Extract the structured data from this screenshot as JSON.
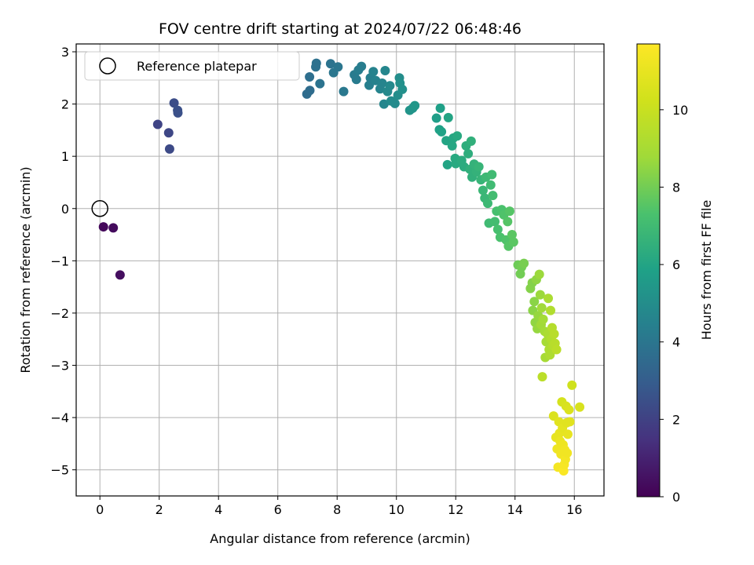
{
  "chart_data": {
    "type": "scatter",
    "title": "FOV centre drift starting at 2024/07/22 06:48:46",
    "xlabel": "Angular distance from reference (arcmin)",
    "ylabel": "Rotation from reference (arcmin)",
    "xlim": [
      -0.8,
      17.0
    ],
    "ylim": [
      -5.5,
      3.15
    ],
    "xticks": [
      0,
      2,
      4,
      6,
      8,
      10,
      12,
      14,
      16
    ],
    "yticks": [
      -5,
      -4,
      -3,
      -2,
      -1,
      0,
      1,
      2,
      3
    ],
    "grid": true,
    "legend": {
      "location": "upper left",
      "entries": [
        "Reference platepar"
      ]
    },
    "reference_point": {
      "x": 0,
      "y": 0
    },
    "colorbar": {
      "label": "Hours from first FF file",
      "colormap": "viridis",
      "range": [
        0,
        11.7
      ],
      "ticks": [
        0,
        2,
        4,
        6,
        8,
        10
      ]
    },
    "points": [
      {
        "x": 0.12,
        "y": -0.35,
        "t": 0.2
      },
      {
        "x": 0.45,
        "y": -0.37,
        "t": 0.3
      },
      {
        "x": 0.68,
        "y": -1.27,
        "t": 0.4
      },
      {
        "x": 1.95,
        "y": 1.61,
        "t": 2.1
      },
      {
        "x": 2.32,
        "y": 1.45,
        "t": 2.2
      },
      {
        "x": 2.35,
        "y": 1.14,
        "t": 2.3
      },
      {
        "x": 2.5,
        "y": 2.02,
        "t": 2.4
      },
      {
        "x": 2.62,
        "y": 1.88,
        "t": 2.5
      },
      {
        "x": 2.63,
        "y": 1.83,
        "t": 2.5
      },
      {
        "x": 6.98,
        "y": 2.19,
        "t": 3.6
      },
      {
        "x": 7.08,
        "y": 2.26,
        "t": 3.6
      },
      {
        "x": 7.07,
        "y": 2.52,
        "t": 3.7
      },
      {
        "x": 7.28,
        "y": 2.71,
        "t": 3.8
      },
      {
        "x": 7.3,
        "y": 2.78,
        "t": 3.8
      },
      {
        "x": 7.42,
        "y": 2.39,
        "t": 3.9
      },
      {
        "x": 7.78,
        "y": 2.77,
        "t": 3.9
      },
      {
        "x": 7.88,
        "y": 2.6,
        "t": 4.0
      },
      {
        "x": 8.03,
        "y": 2.71,
        "t": 4.0
      },
      {
        "x": 8.22,
        "y": 2.24,
        "t": 4.1
      },
      {
        "x": 8.58,
        "y": 2.56,
        "t": 4.2
      },
      {
        "x": 8.65,
        "y": 2.47,
        "t": 4.2
      },
      {
        "x": 8.72,
        "y": 2.65,
        "t": 4.3
      },
      {
        "x": 8.82,
        "y": 2.72,
        "t": 4.3
      },
      {
        "x": 9.08,
        "y": 2.36,
        "t": 4.4
      },
      {
        "x": 9.12,
        "y": 2.5,
        "t": 4.4
      },
      {
        "x": 9.22,
        "y": 2.62,
        "t": 4.5
      },
      {
        "x": 9.3,
        "y": 2.45,
        "t": 4.5
      },
      {
        "x": 9.45,
        "y": 2.29,
        "t": 4.6
      },
      {
        "x": 9.52,
        "y": 2.4,
        "t": 4.6
      },
      {
        "x": 9.58,
        "y": 2.0,
        "t": 4.7
      },
      {
        "x": 9.62,
        "y": 2.64,
        "t": 4.7
      },
      {
        "x": 9.7,
        "y": 2.24,
        "t": 4.8
      },
      {
        "x": 9.78,
        "y": 2.35,
        "t": 4.8
      },
      {
        "x": 9.82,
        "y": 2.06,
        "t": 4.9
      },
      {
        "x": 9.95,
        "y": 2.01,
        "t": 4.9
      },
      {
        "x": 10.05,
        "y": 2.17,
        "t": 5.0
      },
      {
        "x": 10.1,
        "y": 2.5,
        "t": 5.0
      },
      {
        "x": 10.12,
        "y": 2.4,
        "t": 5.1
      },
      {
        "x": 10.2,
        "y": 2.28,
        "t": 5.1
      },
      {
        "x": 10.45,
        "y": 1.88,
        "t": 5.3
      },
      {
        "x": 10.55,
        "y": 1.92,
        "t": 5.3
      },
      {
        "x": 10.62,
        "y": 1.97,
        "t": 5.4
      },
      {
        "x": 11.35,
        "y": 1.73,
        "t": 5.7
      },
      {
        "x": 11.45,
        "y": 1.51,
        "t": 5.8
      },
      {
        "x": 11.48,
        "y": 1.92,
        "t": 5.8
      },
      {
        "x": 11.52,
        "y": 1.47,
        "t": 5.9
      },
      {
        "x": 11.68,
        "y": 1.3,
        "t": 6.0
      },
      {
        "x": 11.72,
        "y": 0.84,
        "t": 6.0
      },
      {
        "x": 11.75,
        "y": 1.74,
        "t": 6.0
      },
      {
        "x": 11.88,
        "y": 1.2,
        "t": 6.1
      },
      {
        "x": 11.92,
        "y": 1.35,
        "t": 6.1
      },
      {
        "x": 11.98,
        "y": 0.96,
        "t": 6.2
      },
      {
        "x": 12.0,
        "y": 0.86,
        "t": 6.2
      },
      {
        "x": 12.05,
        "y": 1.39,
        "t": 6.2
      },
      {
        "x": 12.2,
        "y": 0.92,
        "t": 6.3
      },
      {
        "x": 12.28,
        "y": 0.8,
        "t": 6.3
      },
      {
        "x": 12.35,
        "y": 1.2,
        "t": 6.4
      },
      {
        "x": 12.42,
        "y": 1.05,
        "t": 6.4
      },
      {
        "x": 12.48,
        "y": 0.75,
        "t": 6.5
      },
      {
        "x": 12.52,
        "y": 1.29,
        "t": 6.5
      },
      {
        "x": 12.55,
        "y": 0.6,
        "t": 6.5
      },
      {
        "x": 12.62,
        "y": 0.85,
        "t": 6.6
      },
      {
        "x": 12.7,
        "y": 0.7,
        "t": 6.6
      },
      {
        "x": 12.78,
        "y": 0.8,
        "t": 6.7
      },
      {
        "x": 12.85,
        "y": 0.55,
        "t": 6.7
      },
      {
        "x": 12.92,
        "y": 0.35,
        "t": 6.8
      },
      {
        "x": 12.98,
        "y": 0.2,
        "t": 6.8
      },
      {
        "x": 13.02,
        "y": 0.6,
        "t": 6.9
      },
      {
        "x": 13.08,
        "y": 0.1,
        "t": 6.9
      },
      {
        "x": 13.12,
        "y": -0.28,
        "t": 7.0
      },
      {
        "x": 13.18,
        "y": 0.45,
        "t": 7.0
      },
      {
        "x": 13.22,
        "y": 0.65,
        "t": 7.0
      },
      {
        "x": 13.25,
        "y": 0.25,
        "t": 7.1
      },
      {
        "x": 13.32,
        "y": -0.25,
        "t": 7.1
      },
      {
        "x": 13.38,
        "y": -0.05,
        "t": 7.2
      },
      {
        "x": 13.42,
        "y": -0.4,
        "t": 7.2
      },
      {
        "x": 13.5,
        "y": -0.55,
        "t": 7.3
      },
      {
        "x": 13.55,
        "y": -0.02,
        "t": 7.3
      },
      {
        "x": 13.62,
        "y": -0.12,
        "t": 7.4
      },
      {
        "x": 13.7,
        "y": -0.6,
        "t": 7.4
      },
      {
        "x": 13.75,
        "y": -0.25,
        "t": 7.5
      },
      {
        "x": 13.78,
        "y": -0.72,
        "t": 7.5
      },
      {
        "x": 13.82,
        "y": -0.05,
        "t": 7.5
      },
      {
        "x": 13.9,
        "y": -0.5,
        "t": 7.6
      },
      {
        "x": 13.95,
        "y": -0.64,
        "t": 7.6
      },
      {
        "x": 14.1,
        "y": -1.08,
        "t": 7.9
      },
      {
        "x": 14.18,
        "y": -1.25,
        "t": 8.0
      },
      {
        "x": 14.22,
        "y": -1.12,
        "t": 8.0
      },
      {
        "x": 14.3,
        "y": -1.05,
        "t": 8.1
      },
      {
        "x": 14.52,
        "y": -1.53,
        "t": 8.3
      },
      {
        "x": 14.58,
        "y": -1.42,
        "t": 8.3
      },
      {
        "x": 14.6,
        "y": -1.95,
        "t": 8.4
      },
      {
        "x": 14.65,
        "y": -1.78,
        "t": 8.4
      },
      {
        "x": 14.68,
        "y": -2.18,
        "t": 8.5
      },
      {
        "x": 14.72,
        "y": -1.36,
        "t": 8.5
      },
      {
        "x": 14.75,
        "y": -2.3,
        "t": 8.6
      },
      {
        "x": 14.78,
        "y": -2.05,
        "t": 8.6
      },
      {
        "x": 14.82,
        "y": -1.26,
        "t": 8.7
      },
      {
        "x": 14.85,
        "y": -1.65,
        "t": 8.7
      },
      {
        "x": 14.88,
        "y": -2.22,
        "t": 8.8
      },
      {
        "x": 14.9,
        "y": -1.9,
        "t": 8.8
      },
      {
        "x": 14.92,
        "y": -3.22,
        "t": 9.6
      },
      {
        "x": 14.95,
        "y": -2.12,
        "t": 8.9
      },
      {
        "x": 15.0,
        "y": -2.35,
        "t": 8.9
      },
      {
        "x": 15.02,
        "y": -2.85,
        "t": 9.0
      },
      {
        "x": 15.05,
        "y": -2.55,
        "t": 9.0
      },
      {
        "x": 15.1,
        "y": -2.4,
        "t": 9.1
      },
      {
        "x": 15.12,
        "y": -1.72,
        "t": 9.1
      },
      {
        "x": 15.15,
        "y": -2.7,
        "t": 9.2
      },
      {
        "x": 15.18,
        "y": -2.8,
        "t": 9.2
      },
      {
        "x": 15.2,
        "y": -1.95,
        "t": 9.3
      },
      {
        "x": 15.22,
        "y": -2.5,
        "t": 9.3
      },
      {
        "x": 15.25,
        "y": -2.28,
        "t": 9.4
      },
      {
        "x": 15.28,
        "y": -2.62,
        "t": 9.4
      },
      {
        "x": 15.3,
        "y": -3.97,
        "t": 10.6
      },
      {
        "x": 15.32,
        "y": -2.4,
        "t": 9.5
      },
      {
        "x": 15.35,
        "y": -2.58,
        "t": 9.5
      },
      {
        "x": 15.38,
        "y": -4.38,
        "t": 11.0
      },
      {
        "x": 15.4,
        "y": -2.7,
        "t": 9.6
      },
      {
        "x": 15.42,
        "y": -4.6,
        "t": 11.2
      },
      {
        "x": 15.45,
        "y": -4.95,
        "t": 11.4
      },
      {
        "x": 15.48,
        "y": -4.08,
        "t": 10.8
      },
      {
        "x": 15.5,
        "y": -4.3,
        "t": 11.0
      },
      {
        "x": 15.52,
        "y": -4.45,
        "t": 11.1
      },
      {
        "x": 15.55,
        "y": -4.7,
        "t": 11.3
      },
      {
        "x": 15.58,
        "y": -3.7,
        "t": 10.4
      },
      {
        "x": 15.6,
        "y": -4.2,
        "t": 10.9
      },
      {
        "x": 15.62,
        "y": -4.52,
        "t": 11.2
      },
      {
        "x": 15.64,
        "y": -5.02,
        "t": 11.6
      },
      {
        "x": 15.66,
        "y": -4.9,
        "t": 11.5
      },
      {
        "x": 15.68,
        "y": -4.62,
        "t": 11.3
      },
      {
        "x": 15.7,
        "y": -4.8,
        "t": 11.4
      },
      {
        "x": 15.72,
        "y": -3.78,
        "t": 10.5
      },
      {
        "x": 15.74,
        "y": -4.1,
        "t": 10.8
      },
      {
        "x": 15.76,
        "y": -4.68,
        "t": 11.3
      },
      {
        "x": 15.78,
        "y": -4.32,
        "t": 11.0
      },
      {
        "x": 15.82,
        "y": -3.85,
        "t": 10.6
      },
      {
        "x": 15.85,
        "y": -4.08,
        "t": 10.8
      },
      {
        "x": 15.92,
        "y": -3.38,
        "t": 10.2
      },
      {
        "x": 16.18,
        "y": -3.8,
        "t": 10.5
      }
    ]
  }
}
